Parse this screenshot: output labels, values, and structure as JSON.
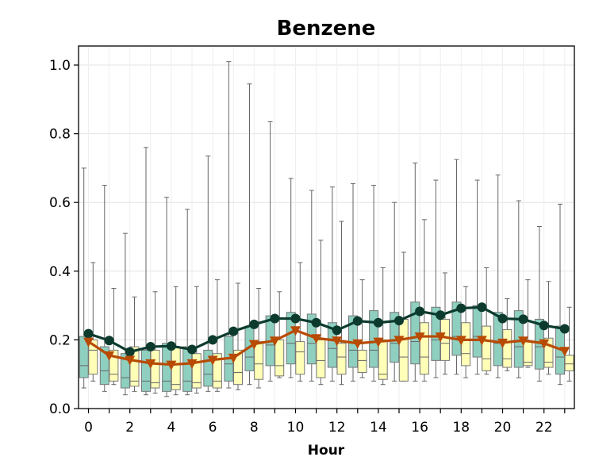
{
  "chart_data": {
    "type": "box",
    "title": "Benzene",
    "xlabel": "Hour",
    "ylabel": "",
    "ylim": [
      0,
      1.05
    ],
    "yticks": [
      "0.0",
      "0.2",
      "0.4",
      "0.6",
      "0.8",
      "1.0"
    ],
    "xticks": [
      "0",
      "2",
      "4",
      "6",
      "8",
      "10",
      "12",
      "14",
      "16",
      "18",
      "20",
      "22"
    ],
    "grid": true,
    "colors": {
      "box_series_1": "#8ecfc0",
      "box_series_2": "#ffffb8",
      "line_series_1": "#0c3b2e",
      "line_series_2": "#b84a02",
      "whisker": "#666666"
    },
    "hours": [
      0,
      1,
      2,
      3,
      4,
      5,
      6,
      7,
      8,
      9,
      10,
      11,
      12,
      13,
      14,
      15,
      16,
      17,
      18,
      19,
      20,
      21,
      22,
      23
    ],
    "box_series": [
      {
        "boxes": [
          {
            "min": 0.06,
            "q1": 0.09,
            "median": 0.125,
            "q3": 0.21,
            "max": 0.7
          },
          {
            "min": 0.05,
            "q1": 0.07,
            "median": 0.11,
            "q3": 0.18,
            "max": 0.65
          },
          {
            "min": 0.04,
            "q1": 0.06,
            "median": 0.09,
            "q3": 0.16,
            "max": 0.51
          },
          {
            "min": 0.04,
            "q1": 0.05,
            "median": 0.08,
            "q3": 0.17,
            "max": 0.76
          },
          {
            "min": 0.035,
            "q1": 0.05,
            "median": 0.08,
            "q3": 0.19,
            "max": 0.615
          },
          {
            "min": 0.04,
            "q1": 0.05,
            "median": 0.08,
            "q3": 0.18,
            "max": 0.58
          },
          {
            "min": 0.05,
            "q1": 0.065,
            "median": 0.1,
            "q3": 0.17,
            "max": 0.735
          },
          {
            "min": 0.06,
            "q1": 0.08,
            "median": 0.13,
            "q3": 0.21,
            "max": 1.01
          },
          {
            "min": 0.07,
            "q1": 0.11,
            "median": 0.15,
            "q3": 0.24,
            "max": 0.945
          },
          {
            "min": 0.08,
            "q1": 0.125,
            "median": 0.185,
            "q3": 0.27,
            "max": 0.835
          },
          {
            "min": 0.09,
            "q1": 0.13,
            "median": 0.19,
            "q3": 0.28,
            "max": 0.67
          },
          {
            "min": 0.08,
            "q1": 0.13,
            "median": 0.19,
            "q3": 0.275,
            "max": 0.635
          },
          {
            "min": 0.08,
            "q1": 0.12,
            "median": 0.175,
            "q3": 0.25,
            "max": 0.645
          },
          {
            "min": 0.08,
            "q1": 0.12,
            "median": 0.17,
            "q3": 0.27,
            "max": 0.655
          },
          {
            "min": 0.08,
            "q1": 0.12,
            "median": 0.17,
            "q3": 0.285,
            "max": 0.65
          },
          {
            "min": 0.08,
            "q1": 0.135,
            "median": 0.19,
            "q3": 0.28,
            "max": 0.6
          },
          {
            "min": 0.08,
            "q1": 0.13,
            "median": 0.195,
            "q3": 0.31,
            "max": 0.715
          },
          {
            "min": 0.09,
            "q1": 0.14,
            "median": 0.2,
            "q3": 0.295,
            "max": 0.665
          },
          {
            "min": 0.1,
            "q1": 0.155,
            "median": 0.21,
            "q3": 0.31,
            "max": 0.725
          },
          {
            "min": 0.1,
            "q1": 0.15,
            "median": 0.21,
            "q3": 0.3,
            "max": 0.665
          },
          {
            "min": 0.09,
            "q1": 0.125,
            "median": 0.19,
            "q3": 0.28,
            "max": 0.68
          },
          {
            "min": 0.09,
            "q1": 0.12,
            "median": 0.18,
            "q3": 0.285,
            "max": 0.605
          },
          {
            "min": 0.08,
            "q1": 0.115,
            "median": 0.18,
            "q3": 0.26,
            "max": 0.53
          },
          {
            "min": 0.07,
            "q1": 0.1,
            "median": 0.15,
            "q3": 0.24,
            "max": 0.595
          }
        ]
      },
      {
        "boxes": [
          {
            "min": 0.08,
            "q1": 0.1,
            "median": 0.17,
            "q3": 0.2,
            "max": 0.425
          },
          {
            "min": 0.07,
            "q1": 0.08,
            "median": 0.1,
            "q3": 0.17,
            "max": 0.35
          },
          {
            "min": 0.05,
            "q1": 0.065,
            "median": 0.08,
            "q3": 0.18,
            "max": 0.325
          },
          {
            "min": 0.045,
            "q1": 0.06,
            "median": 0.075,
            "q3": 0.17,
            "max": 0.34
          },
          {
            "min": 0.04,
            "q1": 0.055,
            "median": 0.07,
            "q3": 0.18,
            "max": 0.355
          },
          {
            "min": 0.045,
            "q1": 0.06,
            "median": 0.075,
            "q3": 0.16,
            "max": 0.355
          },
          {
            "min": 0.05,
            "q1": 0.06,
            "median": 0.08,
            "q3": 0.16,
            "max": 0.375
          },
          {
            "min": 0.055,
            "q1": 0.07,
            "median": 0.105,
            "q3": 0.17,
            "max": 0.365
          },
          {
            "min": 0.06,
            "q1": 0.085,
            "median": 0.13,
            "q3": 0.195,
            "max": 0.35
          },
          {
            "min": 0.09,
            "q1": 0.095,
            "median": 0.125,
            "q3": 0.2,
            "max": 0.34
          },
          {
            "min": 0.08,
            "q1": 0.1,
            "median": 0.165,
            "q3": 0.195,
            "max": 0.425
          },
          {
            "min": 0.07,
            "q1": 0.09,
            "median": 0.14,
            "q3": 0.2,
            "max": 0.49
          },
          {
            "min": 0.07,
            "q1": 0.1,
            "median": 0.15,
            "q3": 0.19,
            "max": 0.545
          },
          {
            "min": 0.09,
            "q1": 0.105,
            "median": 0.14,
            "q3": 0.17,
            "max": 0.375
          },
          {
            "min": 0.07,
            "q1": 0.085,
            "median": 0.1,
            "q3": 0.2,
            "max": 0.41
          },
          {
            "min": 0.08,
            "q1": 0.08,
            "median": 0.15,
            "q3": 0.26,
            "max": 0.455
          },
          {
            "min": 0.08,
            "q1": 0.1,
            "median": 0.15,
            "q3": 0.25,
            "max": 0.55
          },
          {
            "min": 0.1,
            "q1": 0.14,
            "median": 0.19,
            "q3": 0.26,
            "max": 0.395
          },
          {
            "min": 0.09,
            "q1": 0.125,
            "median": 0.16,
            "q3": 0.25,
            "max": 0.355
          },
          {
            "min": 0.1,
            "q1": 0.11,
            "median": 0.145,
            "q3": 0.24,
            "max": 0.41
          },
          {
            "min": 0.11,
            "q1": 0.12,
            "median": 0.145,
            "q3": 0.23,
            "max": 0.32
          },
          {
            "min": 0.12,
            "q1": 0.125,
            "median": 0.135,
            "q3": 0.195,
            "max": 0.375
          },
          {
            "min": 0.1,
            "q1": 0.12,
            "median": 0.135,
            "q3": 0.205,
            "max": 0.37
          },
          {
            "min": 0.08,
            "q1": 0.11,
            "median": 0.13,
            "q3": 0.155,
            "max": 0.295
          }
        ]
      }
    ],
    "line_series": [
      {
        "marker": "circle",
        "values": [
          0.218,
          0.198,
          0.165,
          0.18,
          0.182,
          0.172,
          0.2,
          0.225,
          0.245,
          0.262,
          0.262,
          0.25,
          0.228,
          0.255,
          0.25,
          0.256,
          0.283,
          0.272,
          0.292,
          0.295,
          0.262,
          0.26,
          0.242,
          0.232
        ]
      },
      {
        "marker": "triangle-down",
        "values": [
          0.195,
          0.155,
          0.142,
          0.132,
          0.128,
          0.132,
          0.142,
          0.148,
          0.188,
          0.198,
          0.228,
          0.205,
          0.198,
          0.19,
          0.195,
          0.2,
          0.21,
          0.21,
          0.2,
          0.2,
          0.192,
          0.198,
          0.19,
          0.168
        ]
      }
    ]
  }
}
